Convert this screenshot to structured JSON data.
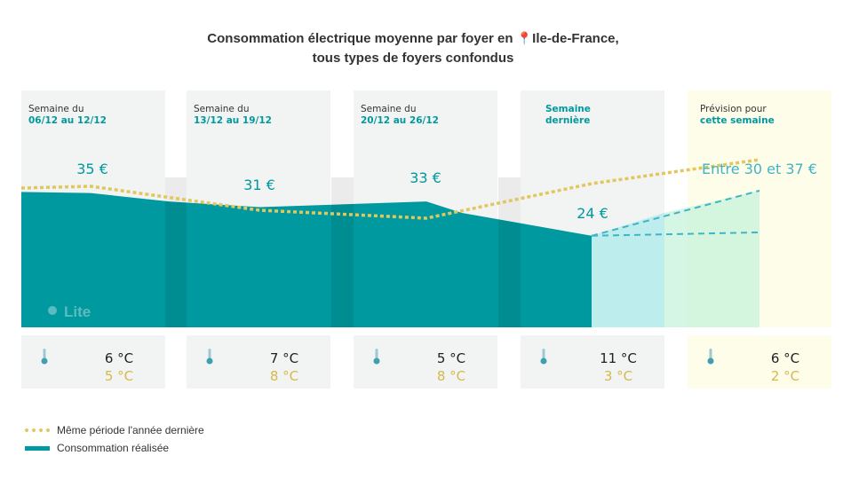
{
  "title_line1": "Consommation électrique moyenne par foyer en",
  "pin_icon": "📍",
  "title_region": "Ile-de-France,",
  "title_line2": "tous types de foyers confondus",
  "watermark": "Lite",
  "chart_data": {
    "type": "area",
    "categories": [
      "06/12 au 12/12",
      "13/12 au 19/12",
      "20/12 au 26/12",
      "Semaine dernière",
      "cette semaine"
    ],
    "series": [
      {
        "name": "Consommation réalisée",
        "color": "#00999f",
        "values": [
          35,
          31,
          33,
          24,
          null
        ],
        "value_labels": [
          "35 €",
          "31 €",
          "33 €",
          "24 €",
          ""
        ]
      },
      {
        "name": "Même période l'année dernière",
        "color": "#e2c65e",
        "style": "dotted"
      }
    ],
    "forecast": {
      "low": 30,
      "high": 37,
      "label": "Entre 30 et 37 €"
    },
    "periods": [
      {
        "label_top": "Semaine du",
        "label_bottom": "06/12 au 12/12",
        "temp": "6 °C",
        "temp_last_year": "5 °C"
      },
      {
        "label_top": "Semaine du",
        "label_bottom": "13/12 au 19/12",
        "temp": "7 °C",
        "temp_last_year": "8 °C"
      },
      {
        "label_top": "Semaine du",
        "label_bottom": "20/12 au 26/12",
        "temp": "5 °C",
        "temp_last_year": "8 °C"
      },
      {
        "label_top": "",
        "label_bottom": "Semaine dernière",
        "temp": "11 °C",
        "temp_last_year": "3 °C"
      },
      {
        "label_top": "Prévision pour",
        "label_bottom": "cette semaine",
        "temp": "6 °C",
        "temp_last_year": "2 °C"
      }
    ],
    "legend": [
      "Même période l'année dernière",
      "Consommation réalisée"
    ],
    "legend_position": "bottom-left",
    "grid": false,
    "icon": "thermometer-icon"
  }
}
